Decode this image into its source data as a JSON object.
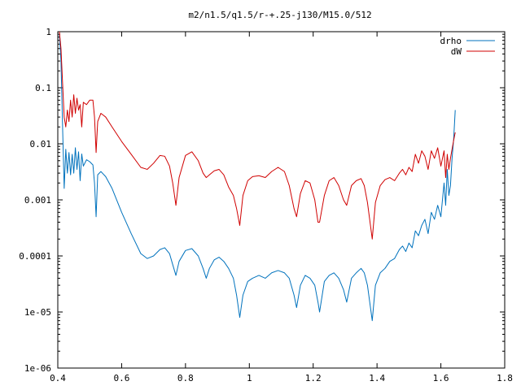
{
  "chart_data": {
    "type": "line",
    "title": "m2/n1.5/q1.5/r-+.25-j130/M15.0/512",
    "xlabel": "",
    "ylabel": "",
    "xlim": [
      0.4,
      1.8
    ],
    "ylim": [
      1e-06,
      1
    ],
    "yscale": "log",
    "grid": false,
    "legend_position": "top-right",
    "x_ticks": [
      "0.4",
      "0.6",
      "0.8",
      "1",
      "1.2",
      "1.4",
      "1.6",
      "1.8"
    ],
    "y_ticks": [
      "1",
      "0.1",
      "0.01",
      "0.001",
      "0.0001",
      "1e-05",
      "1e-06"
    ],
    "series": [
      {
        "name": "drho",
        "color": "#0072bd",
        "points": [
          [
            0.405,
            0.9
          ],
          [
            0.41,
            0.3
          ],
          [
            0.415,
            0.02
          ],
          [
            0.42,
            0.0016
          ],
          [
            0.425,
            0.008
          ],
          [
            0.43,
            0.003
          ],
          [
            0.435,
            0.007
          ],
          [
            0.44,
            0.0028
          ],
          [
            0.445,
            0.0065
          ],
          [
            0.45,
            0.003
          ],
          [
            0.455,
            0.0085
          ],
          [
            0.46,
            0.0035
          ],
          [
            0.465,
            0.0072
          ],
          [
            0.47,
            0.0022
          ],
          [
            0.475,
            0.0066
          ],
          [
            0.48,
            0.004
          ],
          [
            0.49,
            0.0052
          ],
          [
            0.5,
            0.0048
          ],
          [
            0.51,
            0.0042
          ],
          [
            0.515,
            0.002
          ],
          [
            0.52,
            0.0005
          ],
          [
            0.525,
            0.0028
          ],
          [
            0.535,
            0.0032
          ],
          [
            0.55,
            0.0026
          ],
          [
            0.57,
            0.0016
          ],
          [
            0.6,
            0.0006
          ],
          [
            0.63,
            0.00025
          ],
          [
            0.66,
            0.00011
          ],
          [
            0.68,
            9e-05
          ],
          [
            0.7,
            0.0001
          ],
          [
            0.72,
            0.00013
          ],
          [
            0.735,
            0.00014
          ],
          [
            0.75,
            0.00011
          ],
          [
            0.76,
            7e-05
          ],
          [
            0.77,
            4.5e-05
          ],
          [
            0.78,
            8e-05
          ],
          [
            0.8,
            0.000125
          ],
          [
            0.82,
            0.000135
          ],
          [
            0.84,
            0.0001
          ],
          [
            0.855,
            6e-05
          ],
          [
            0.865,
            4e-05
          ],
          [
            0.875,
            6e-05
          ],
          [
            0.89,
            8.5e-05
          ],
          [
            0.905,
            9.5e-05
          ],
          [
            0.92,
            8e-05
          ],
          [
            0.935,
            6e-05
          ],
          [
            0.95,
            4e-05
          ],
          [
            0.96,
            2e-05
          ],
          [
            0.97,
            8e-06
          ],
          [
            0.98,
            2e-05
          ],
          [
            0.995,
            3.5e-05
          ],
          [
            1.01,
            4e-05
          ],
          [
            1.03,
            4.5e-05
          ],
          [
            1.05,
            4e-05
          ],
          [
            1.07,
            5e-05
          ],
          [
            1.09,
            5.5e-05
          ],
          [
            1.11,
            5e-05
          ],
          [
            1.125,
            4e-05
          ],
          [
            1.14,
            2e-05
          ],
          [
            1.148,
            1.2e-05
          ],
          [
            1.16,
            3e-05
          ],
          [
            1.175,
            4.5e-05
          ],
          [
            1.19,
            4e-05
          ],
          [
            1.205,
            3e-05
          ],
          [
            1.215,
            1.5e-05
          ],
          [
            1.22,
            1e-05
          ],
          [
            1.235,
            3.5e-05
          ],
          [
            1.25,
            4.5e-05
          ],
          [
            1.265,
            5e-05
          ],
          [
            1.28,
            4e-05
          ],
          [
            1.295,
            2.5e-05
          ],
          [
            1.305,
            1.5e-05
          ],
          [
            1.32,
            4e-05
          ],
          [
            1.335,
            5e-05
          ],
          [
            1.35,
            6e-05
          ],
          [
            1.36,
            5e-05
          ],
          [
            1.37,
            3e-05
          ],
          [
            1.385,
            7e-06
          ],
          [
            1.395,
            3e-05
          ],
          [
            1.41,
            5e-05
          ],
          [
            1.425,
            6e-05
          ],
          [
            1.44,
            8e-05
          ],
          [
            1.455,
            9e-05
          ],
          [
            1.47,
            0.00013
          ],
          [
            1.48,
            0.00015
          ],
          [
            1.49,
            0.00012
          ],
          [
            1.5,
            0.00017
          ],
          [
            1.51,
            0.00014
          ],
          [
            1.52,
            0.00028
          ],
          [
            1.53,
            0.00023
          ],
          [
            1.54,
            0.00035
          ],
          [
            1.55,
            0.00045
          ],
          [
            1.56,
            0.00025
          ],
          [
            1.57,
            0.0006
          ],
          [
            1.58,
            0.00045
          ],
          [
            1.59,
            0.0008
          ],
          [
            1.6,
            0.0005
          ],
          [
            1.61,
            0.002
          ],
          [
            1.615,
            0.0008
          ],
          [
            1.62,
            0.0035
          ],
          [
            1.625,
            0.0012
          ],
          [
            1.63,
            0.0018
          ],
          [
            1.635,
            0.0055
          ],
          [
            1.64,
            0.012
          ],
          [
            1.645,
            0.04
          ]
        ]
      },
      {
        "name": "dW",
        "color": "#d00000",
        "points": [
          [
            0.405,
            1.0
          ],
          [
            0.41,
            0.5
          ],
          [
            0.415,
            0.12
          ],
          [
            0.42,
            0.03
          ],
          [
            0.425,
            0.02
          ],
          [
            0.43,
            0.04
          ],
          [
            0.435,
            0.025
          ],
          [
            0.44,
            0.06
          ],
          [
            0.445,
            0.03
          ],
          [
            0.45,
            0.075
          ],
          [
            0.455,
            0.035
          ],
          [
            0.46,
            0.065
          ],
          [
            0.465,
            0.04
          ],
          [
            0.47,
            0.05
          ],
          [
            0.475,
            0.02
          ],
          [
            0.48,
            0.055
          ],
          [
            0.49,
            0.05
          ],
          [
            0.5,
            0.06
          ],
          [
            0.51,
            0.06
          ],
          [
            0.515,
            0.03
          ],
          [
            0.52,
            0.007
          ],
          [
            0.525,
            0.025
          ],
          [
            0.535,
            0.035
          ],
          [
            0.55,
            0.03
          ],
          [
            0.57,
            0.02
          ],
          [
            0.6,
            0.011
          ],
          [
            0.63,
            0.0065
          ],
          [
            0.66,
            0.0038
          ],
          [
            0.68,
            0.0035
          ],
          [
            0.7,
            0.0045
          ],
          [
            0.72,
            0.0062
          ],
          [
            0.735,
            0.006
          ],
          [
            0.75,
            0.004
          ],
          [
            0.76,
            0.002
          ],
          [
            0.77,
            0.0008
          ],
          [
            0.78,
            0.0025
          ],
          [
            0.8,
            0.0062
          ],
          [
            0.82,
            0.0072
          ],
          [
            0.84,
            0.005
          ],
          [
            0.855,
            0.003
          ],
          [
            0.865,
            0.0025
          ],
          [
            0.875,
            0.0028
          ],
          [
            0.89,
            0.0033
          ],
          [
            0.905,
            0.0035
          ],
          [
            0.92,
            0.0028
          ],
          [
            0.935,
            0.0017
          ],
          [
            0.95,
            0.0012
          ],
          [
            0.96,
            0.0007
          ],
          [
            0.97,
            0.00035
          ],
          [
            0.98,
            0.0012
          ],
          [
            0.995,
            0.0022
          ],
          [
            1.01,
            0.0026
          ],
          [
            1.03,
            0.0027
          ],
          [
            1.05,
            0.0025
          ],
          [
            1.07,
            0.0032
          ],
          [
            1.09,
            0.0038
          ],
          [
            1.11,
            0.0032
          ],
          [
            1.125,
            0.0018
          ],
          [
            1.14,
            0.0007
          ],
          [
            1.148,
            0.0005
          ],
          [
            1.16,
            0.0013
          ],
          [
            1.175,
            0.0022
          ],
          [
            1.19,
            0.002
          ],
          [
            1.205,
            0.001
          ],
          [
            1.215,
            0.0004
          ],
          [
            1.22,
            0.0004
          ],
          [
            1.235,
            0.0012
          ],
          [
            1.25,
            0.0022
          ],
          [
            1.265,
            0.0025
          ],
          [
            1.28,
            0.0018
          ],
          [
            1.295,
            0.001
          ],
          [
            1.305,
            0.0008
          ],
          [
            1.32,
            0.0018
          ],
          [
            1.335,
            0.0022
          ],
          [
            1.35,
            0.0024
          ],
          [
            1.36,
            0.0018
          ],
          [
            1.37,
            0.0009
          ],
          [
            1.385,
            0.0002
          ],
          [
            1.395,
            0.0009
          ],
          [
            1.41,
            0.0018
          ],
          [
            1.425,
            0.0023
          ],
          [
            1.44,
            0.0025
          ],
          [
            1.455,
            0.0022
          ],
          [
            1.47,
            0.003
          ],
          [
            1.48,
            0.0035
          ],
          [
            1.49,
            0.0028
          ],
          [
            1.5,
            0.0038
          ],
          [
            1.51,
            0.0032
          ],
          [
            1.52,
            0.0065
          ],
          [
            1.53,
            0.0045
          ],
          [
            1.54,
            0.0075
          ],
          [
            1.55,
            0.006
          ],
          [
            1.56,
            0.0035
          ],
          [
            1.57,
            0.0075
          ],
          [
            1.58,
            0.0055
          ],
          [
            1.59,
            0.0085
          ],
          [
            1.6,
            0.004
          ],
          [
            1.61,
            0.0075
          ],
          [
            1.615,
            0.0025
          ],
          [
            1.62,
            0.0065
          ],
          [
            1.625,
            0.0035
          ],
          [
            1.63,
            0.0055
          ],
          [
            1.635,
            0.008
          ],
          [
            1.64,
            0.0115
          ],
          [
            1.645,
            0.016
          ]
        ]
      }
    ]
  }
}
